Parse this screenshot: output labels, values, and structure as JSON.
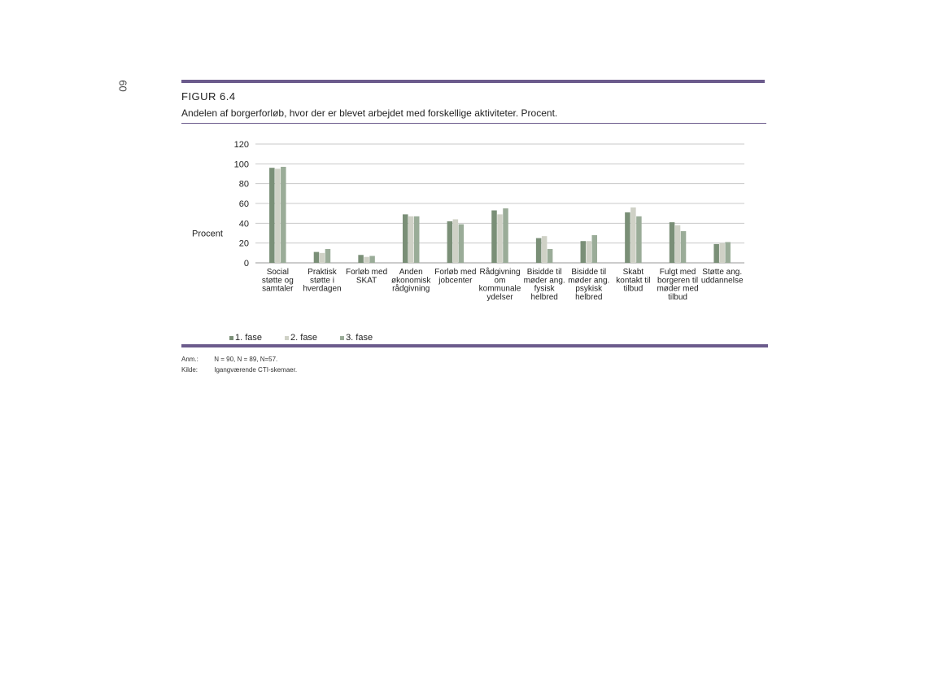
{
  "page_number": "60",
  "figure": {
    "label": "FIGUR 6.4",
    "caption": "Andelen af borgerforløb, hvor der er blevet arbejdet med forskellige aktiviteter. Procent."
  },
  "notes": [
    {
      "key": "Anm.:",
      "text": "N = 90, N = 89, N=57."
    },
    {
      "key": "Kilde:",
      "text": "Igangværende CTI-skemaer."
    }
  ],
  "chart_data": {
    "type": "bar",
    "ylabel": "Procent",
    "xlabel": "",
    "ylim": [
      0,
      120
    ],
    "yticks": [
      0,
      20,
      40,
      60,
      80,
      100,
      120
    ],
    "grid": true,
    "legend_position": "bottom-left",
    "categories": [
      [
        "Social",
        "støtte og",
        "samtaler"
      ],
      [
        "Praktisk",
        "støtte i",
        "hverdagen"
      ],
      [
        "Forløb med",
        "SKAT"
      ],
      [
        "Anden",
        "økonomisk",
        "rådgivning"
      ],
      [
        "Forløb med",
        "jobcenter"
      ],
      [
        "Rådgivning",
        "om",
        "kommunale",
        "ydelser"
      ],
      [
        "Bisidde til",
        "møder ang.",
        "fysisk",
        "helbred"
      ],
      [
        "Bisidde til",
        "møder ang.",
        "psykisk",
        "helbred"
      ],
      [
        "Skabt",
        "kontakt til",
        "tilbud"
      ],
      [
        "Fulgt med",
        "borgeren til",
        "møder med",
        "tilbud"
      ],
      [
        "Støtte ang.",
        "uddannelse"
      ]
    ],
    "series": [
      {
        "name": "1. fase",
        "color": "#7a8f77",
        "values": [
          96,
          11,
          8,
          49,
          42,
          53,
          25,
          22,
          51,
          41,
          19
        ]
      },
      {
        "name": "2. fase",
        "color": "#cfd1c6",
        "values": [
          95,
          10,
          6,
          47,
          44,
          49,
          27,
          22,
          56,
          38,
          20
        ]
      },
      {
        "name": "3. fase",
        "color": "#9aac98",
        "values": [
          97,
          14,
          7,
          47,
          39,
          55,
          14,
          28,
          47,
          32,
          21
        ]
      }
    ]
  }
}
